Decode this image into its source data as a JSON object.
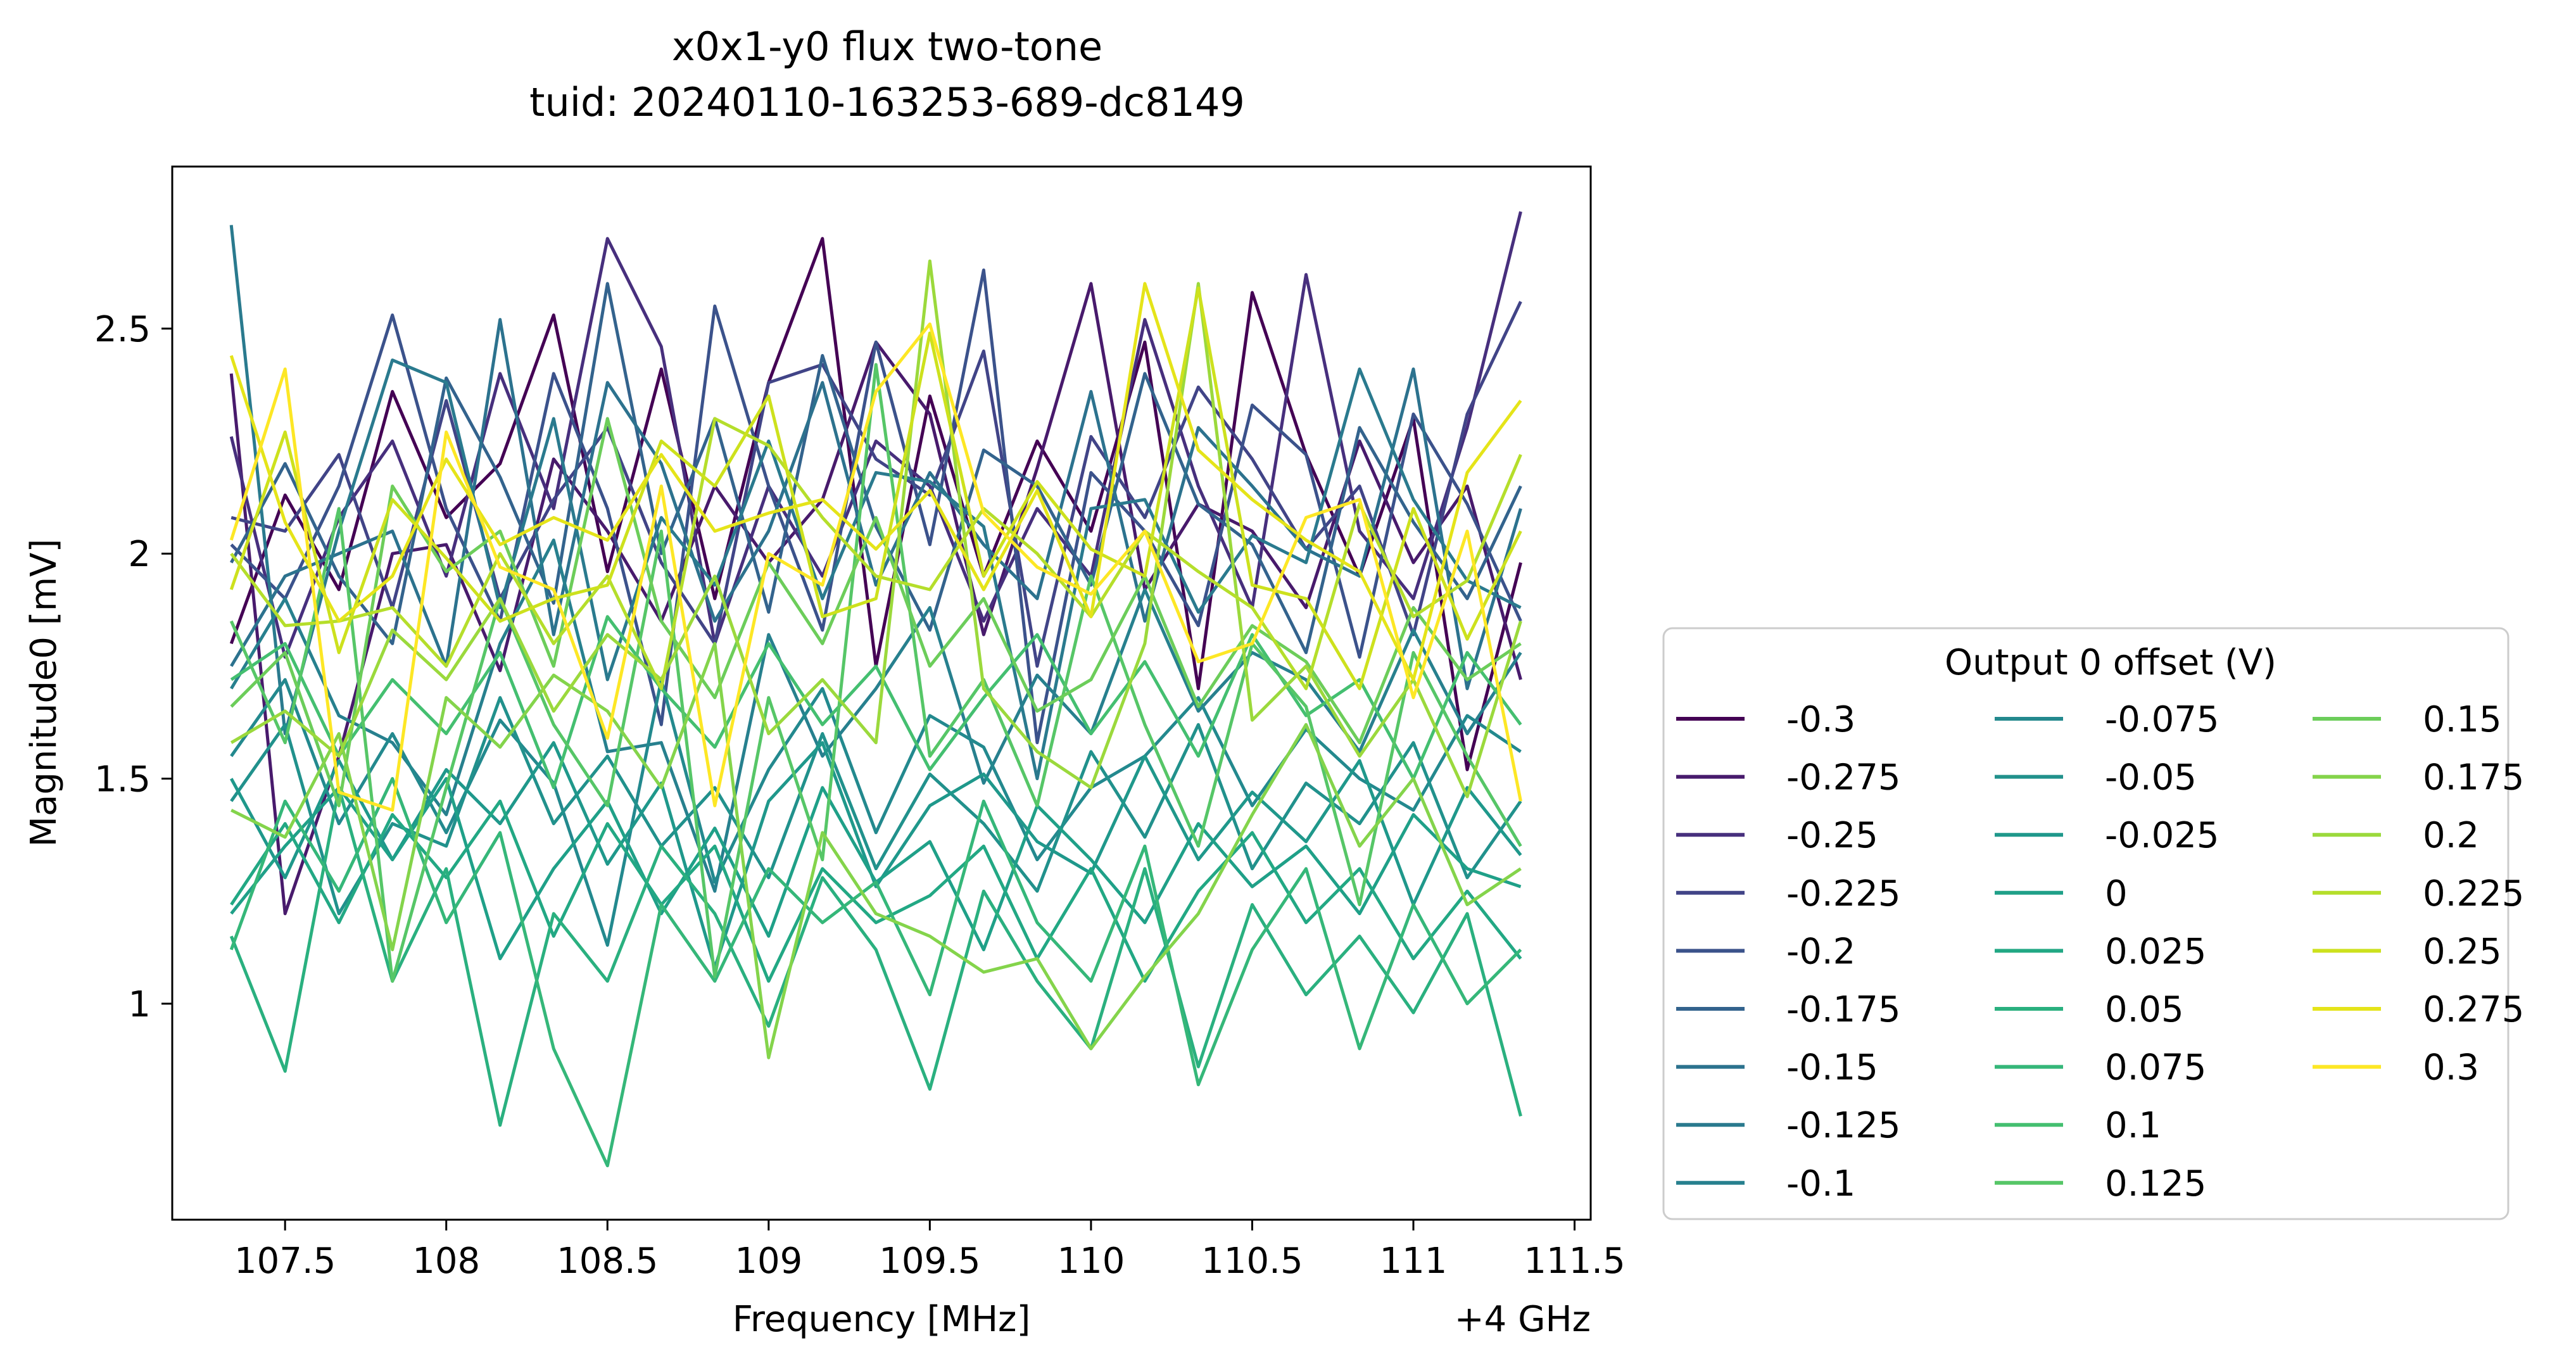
{
  "chart_data": {
    "type": "line",
    "title": "x0x1-y0 flux two-tone",
    "subtitle": "tuid: 20240110-163253-689-dc8149",
    "xlabel": "Frequency [MHz]",
    "x_offset_label": "+4 GHz",
    "ylabel": "Magnitude0 [mV]",
    "xlim": [
      107.15,
      111.55
    ],
    "ylim": [
      0.52,
      2.86
    ],
    "xticks": [
      107.5,
      108,
      108.5,
      109,
      109.5,
      110,
      110.5,
      111,
      111.5
    ],
    "xtick_labels": [
      "107.5",
      "108",
      "108.5",
      "109",
      "109.5",
      "110",
      "110.5",
      "111",
      "111.5"
    ],
    "yticks": [
      1,
      1.5,
      2,
      2.5
    ],
    "ytick_labels": [
      "1",
      "1.5",
      "2",
      "2.5"
    ],
    "grid": false,
    "legend": {
      "title": "Output 0 offset (V)",
      "placement": "outside-right",
      "columns": 3
    },
    "x": [
      107.333,
      107.5,
      107.667,
      107.833,
      108,
      108.167,
      108.333,
      108.5,
      108.667,
      108.833,
      109,
      109.167,
      109.333,
      109.5,
      109.667,
      109.833,
      110,
      110.167,
      110.333,
      110.5,
      110.667,
      110.833,
      111,
      111.167,
      111.333
    ],
    "series": [
      {
        "name": "-0.3",
        "color": "#440154",
        "values": [
          1.8,
          2.13,
          1.92,
          2.36,
          2.08,
          2.2,
          2.53,
          1.96,
          2.41,
          1.9,
          2.38,
          2.7,
          1.75,
          2.35,
          1.95,
          2.25,
          2.05,
          2.47,
          1.7,
          2.58,
          2.22,
          1.95,
          2.3,
          1.52,
          1.98
        ]
      },
      {
        "name": "-0.275",
        "color": "#481a6c",
        "values": [
          2.4,
          1.2,
          1.55,
          2.0,
          2.02,
          1.74,
          2.21,
          2.05,
          1.85,
          2.15,
          1.98,
          2.12,
          2.47,
          2.31,
          1.82,
          2.19,
          2.6,
          1.92,
          2.11,
          2.05,
          1.88,
          2.25,
          1.98,
          2.15,
          1.72
        ]
      },
      {
        "name": "-0.25",
        "color": "#472f7d",
        "values": [
          2.26,
          1.77,
          2.08,
          2.25,
          1.95,
          2.4,
          2.1,
          2.7,
          2.46,
          1.8,
          2.15,
          1.95,
          2.25,
          2.15,
          1.85,
          2.1,
          1.95,
          2.52,
          2.15,
          1.88,
          2.62,
          2.05,
          1.9,
          2.28,
          2.76
        ]
      },
      {
        "name": "-0.225",
        "color": "#414487",
        "values": [
          2.08,
          2.05,
          2.22,
          1.88,
          2.34,
          1.9,
          2.12,
          2.28,
          1.98,
          1.8,
          2.38,
          2.42,
          2.21,
          2.13,
          2.45,
          1.75,
          2.26,
          2.08,
          2.37,
          2.21,
          2.01,
          2.15,
          1.82,
          2.31,
          2.56
        ]
      },
      {
        "name": "-0.2",
        "color": "#3b528b",
        "values": [
          2.02,
          1.9,
          2.15,
          2.53,
          2.1,
          1.85,
          2.4,
          2.1,
          1.62,
          2.55,
          2.15,
          1.83,
          2.47,
          2.02,
          2.63,
          1.58,
          2.18,
          2.05,
          1.84,
          2.33,
          2.22,
          1.77,
          2.31,
          2.11,
          1.85
        ]
      },
      {
        "name": "-0.175",
        "color": "#33638d",
        "values": [
          1.98,
          2.2,
          1.95,
          1.8,
          2.39,
          2.17,
          1.89,
          2.6,
          2.0,
          2.3,
          1.87,
          2.44,
          2.06,
          1.83,
          2.23,
          2.15,
          1.93,
          2.4,
          2.11,
          2.02,
          1.78,
          2.28,
          2.07,
          1.9,
          2.15
        ]
      },
      {
        "name": "-0.15",
        "color": "#2c728e",
        "values": [
          1.75,
          1.95,
          2.0,
          2.05,
          1.75,
          2.52,
          1.82,
          2.38,
          2.2,
          1.85,
          2.05,
          2.38,
          1.93,
          2.18,
          2.02,
          1.9,
          2.36,
          1.85,
          2.28,
          2.15,
          2.01,
          1.95,
          2.41,
          1.7,
          2.1
        ]
      },
      {
        "name": "-0.125",
        "color": "#2a7a8e",
        "values": [
          2.73,
          1.6,
          2.05,
          2.43,
          2.38,
          1.88,
          2.3,
          1.72,
          2.08,
          1.93,
          2.25,
          1.9,
          2.18,
          2.16,
          2.06,
          1.5,
          2.1,
          2.12,
          1.87,
          2.04,
          1.98,
          2.41,
          2.12,
          1.94,
          1.88
        ]
      },
      {
        "name": "-0.1",
        "color": "#27808e",
        "values": [
          1.7,
          1.9,
          1.64,
          1.58,
          1.42,
          1.8,
          2.03,
          1.56,
          1.58,
          1.25,
          1.82,
          1.55,
          1.7,
          1.88,
          1.49,
          1.73,
          1.6,
          1.92,
          1.65,
          1.78,
          1.72,
          1.56,
          1.83,
          1.6,
          1.78
        ]
      },
      {
        "name": "-0.075",
        "color": "#23898e",
        "values": [
          1.55,
          1.72,
          1.4,
          1.6,
          1.38,
          1.63,
          1.49,
          1.13,
          1.72,
          1.27,
          1.52,
          1.7,
          1.38,
          1.64,
          1.57,
          1.32,
          1.48,
          1.55,
          1.68,
          1.44,
          1.61,
          1.5,
          1.43,
          1.64,
          1.56
        ]
      },
      {
        "name": "-0.05",
        "color": "#21918c",
        "values": [
          1.45,
          1.62,
          1.2,
          1.4,
          1.35,
          1.68,
          1.4,
          1.55,
          1.35,
          1.48,
          1.28,
          1.6,
          1.3,
          1.51,
          1.4,
          1.25,
          1.56,
          1.37,
          1.62,
          1.3,
          1.49,
          1.4,
          1.58,
          1.28,
          1.45
        ]
      },
      {
        "name": "-0.025",
        "color": "#1f988b",
        "values": [
          1.5,
          1.28,
          1.54,
          1.32,
          1.52,
          1.4,
          1.58,
          1.31,
          1.49,
          1.08,
          1.45,
          1.58,
          1.26,
          1.44,
          1.51,
          1.36,
          1.29,
          1.55,
          1.32,
          1.47,
          1.36,
          1.54,
          1.22,
          1.48,
          1.33
        ]
      },
      {
        "name": "0",
        "color": "#1fa088",
        "values": [
          1.2,
          1.35,
          1.48,
          1.32,
          1.5,
          1.1,
          1.3,
          1.45,
          1.2,
          1.39,
          1.15,
          1.48,
          1.27,
          1.36,
          1.12,
          1.44,
          1.32,
          1.18,
          1.4,
          1.26,
          1.35,
          1.2,
          1.42,
          1.3,
          1.26
        ]
      },
      {
        "name": "0.025",
        "color": "#22a884",
        "values": [
          1.22,
          1.4,
          1.18,
          1.42,
          1.28,
          1.45,
          1.15,
          1.4,
          1.22,
          1.35,
          1.05,
          1.3,
          1.18,
          1.24,
          1.35,
          1.1,
          1.3,
          1.05,
          1.25,
          1.38,
          1.18,
          1.3,
          1.1,
          1.25,
          1.1
        ]
      },
      {
        "name": "0.05",
        "color": "#2ab07f",
        "values": [
          1.15,
          0.85,
          1.48,
          1.05,
          1.3,
          0.73,
          1.2,
          1.05,
          1.35,
          1.2,
          0.95,
          1.28,
          1.12,
          0.81,
          1.25,
          1.05,
          0.9,
          1.3,
          0.86,
          1.22,
          1.02,
          1.15,
          0.98,
          1.2,
          0.75
        ]
      },
      {
        "name": "0.075",
        "color": "#35b779",
        "values": [
          1.12,
          1.45,
          1.25,
          1.5,
          1.18,
          1.38,
          0.9,
          0.64,
          1.22,
          1.05,
          1.3,
          1.18,
          1.27,
          1.02,
          1.45,
          1.18,
          1.05,
          1.35,
          0.82,
          1.12,
          1.3,
          0.9,
          1.22,
          1.0,
          1.12
        ]
      },
      {
        "name": "0.1",
        "color": "#44bf70",
        "values": [
          1.72,
          1.8,
          1.55,
          1.72,
          1.6,
          1.78,
          1.48,
          1.86,
          1.7,
          1.57,
          1.8,
          1.62,
          1.75,
          1.52,
          1.68,
          1.82,
          1.6,
          1.76,
          1.55,
          1.82,
          1.64,
          1.72,
          1.5,
          1.78,
          1.62
        ]
      },
      {
        "name": "0.125",
        "color": "#56c667",
        "values": [
          1.85,
          1.58,
          2.1,
          1.05,
          1.48,
          1.9,
          1.62,
          1.44,
          2.05,
          1.06,
          1.68,
          1.32,
          2.42,
          1.55,
          1.72,
          1.44,
          1.95,
          1.62,
          1.35,
          1.8,
          1.66,
          1.22,
          1.78,
          1.55,
          1.35
        ]
      },
      {
        "name": "0.15",
        "color": "#6ccd5a",
        "values": [
          1.66,
          1.78,
          1.44,
          2.15,
          1.96,
          2.05,
          1.75,
          2.3,
          1.85,
          1.68,
          1.98,
          1.8,
          2.08,
          1.75,
          1.9,
          1.65,
          1.72,
          1.95,
          1.66,
          1.84,
          1.76,
          1.58,
          1.88,
          1.72,
          1.8
        ]
      },
      {
        "name": "0.175",
        "color": "#84d44b",
        "values": [
          1.43,
          1.37,
          1.6,
          1.12,
          1.68,
          1.57,
          1.73,
          1.65,
          1.48,
          1.8,
          0.88,
          1.38,
          1.2,
          1.15,
          1.07,
          1.1,
          0.9,
          1.06,
          1.2,
          1.42,
          1.62,
          1.35,
          1.5,
          1.22,
          1.3
        ]
      },
      {
        "name": "0.2",
        "color": "#9bd93c",
        "values": [
          1.58,
          1.65,
          1.55,
          1.83,
          1.72,
          1.9,
          1.65,
          1.82,
          1.72,
          1.95,
          1.6,
          1.72,
          1.58,
          2.65,
          1.7,
          1.56,
          1.48,
          1.8,
          2.6,
          1.63,
          1.75,
          1.55,
          1.72,
          1.46,
          1.85
        ]
      },
      {
        "name": "0.225",
        "color": "#b5de2b",
        "values": [
          2.0,
          1.84,
          1.85,
          1.88,
          1.75,
          2.0,
          1.8,
          1.95,
          1.7,
          2.3,
          2.24,
          2.08,
          1.95,
          1.92,
          2.1,
          2.0,
          1.86,
          2.05,
          1.96,
          1.88,
          1.7,
          2.11,
          1.86,
          1.94,
          2.22
        ]
      },
      {
        "name": "0.25",
        "color": "#cde11d",
        "values": [
          1.92,
          2.27,
          1.78,
          2.12,
          1.99,
          1.85,
          1.9,
          1.93,
          2.25,
          2.15,
          2.35,
          1.86,
          1.9,
          2.49,
          1.95,
          2.16,
          2.01,
          1.95,
          2.59,
          1.93,
          1.9,
          1.7,
          2.1,
          1.81,
          2.05
        ]
      },
      {
        "name": "0.275",
        "color": "#e5e419",
        "values": [
          2.44,
          2.07,
          1.85,
          1.95,
          2.21,
          2.02,
          2.08,
          2.03,
          2.22,
          2.05,
          2.09,
          2.12,
          2.01,
          2.14,
          1.92,
          2.14,
          1.86,
          2.6,
          2.23,
          2.12,
          2.03,
          1.96,
          1.72,
          2.18,
          2.34
        ]
      },
      {
        "name": "0.3",
        "color": "#fde725",
        "values": [
          2.03,
          2.41,
          1.47,
          1.43,
          2.27,
          1.97,
          1.92,
          1.59,
          2.15,
          1.44,
          2.0,
          1.93,
          2.36,
          2.51,
          2.09,
          1.97,
          1.91,
          2.05,
          1.76,
          1.8,
          2.08,
          2.12,
          1.68,
          2.05,
          1.45
        ]
      }
    ]
  }
}
